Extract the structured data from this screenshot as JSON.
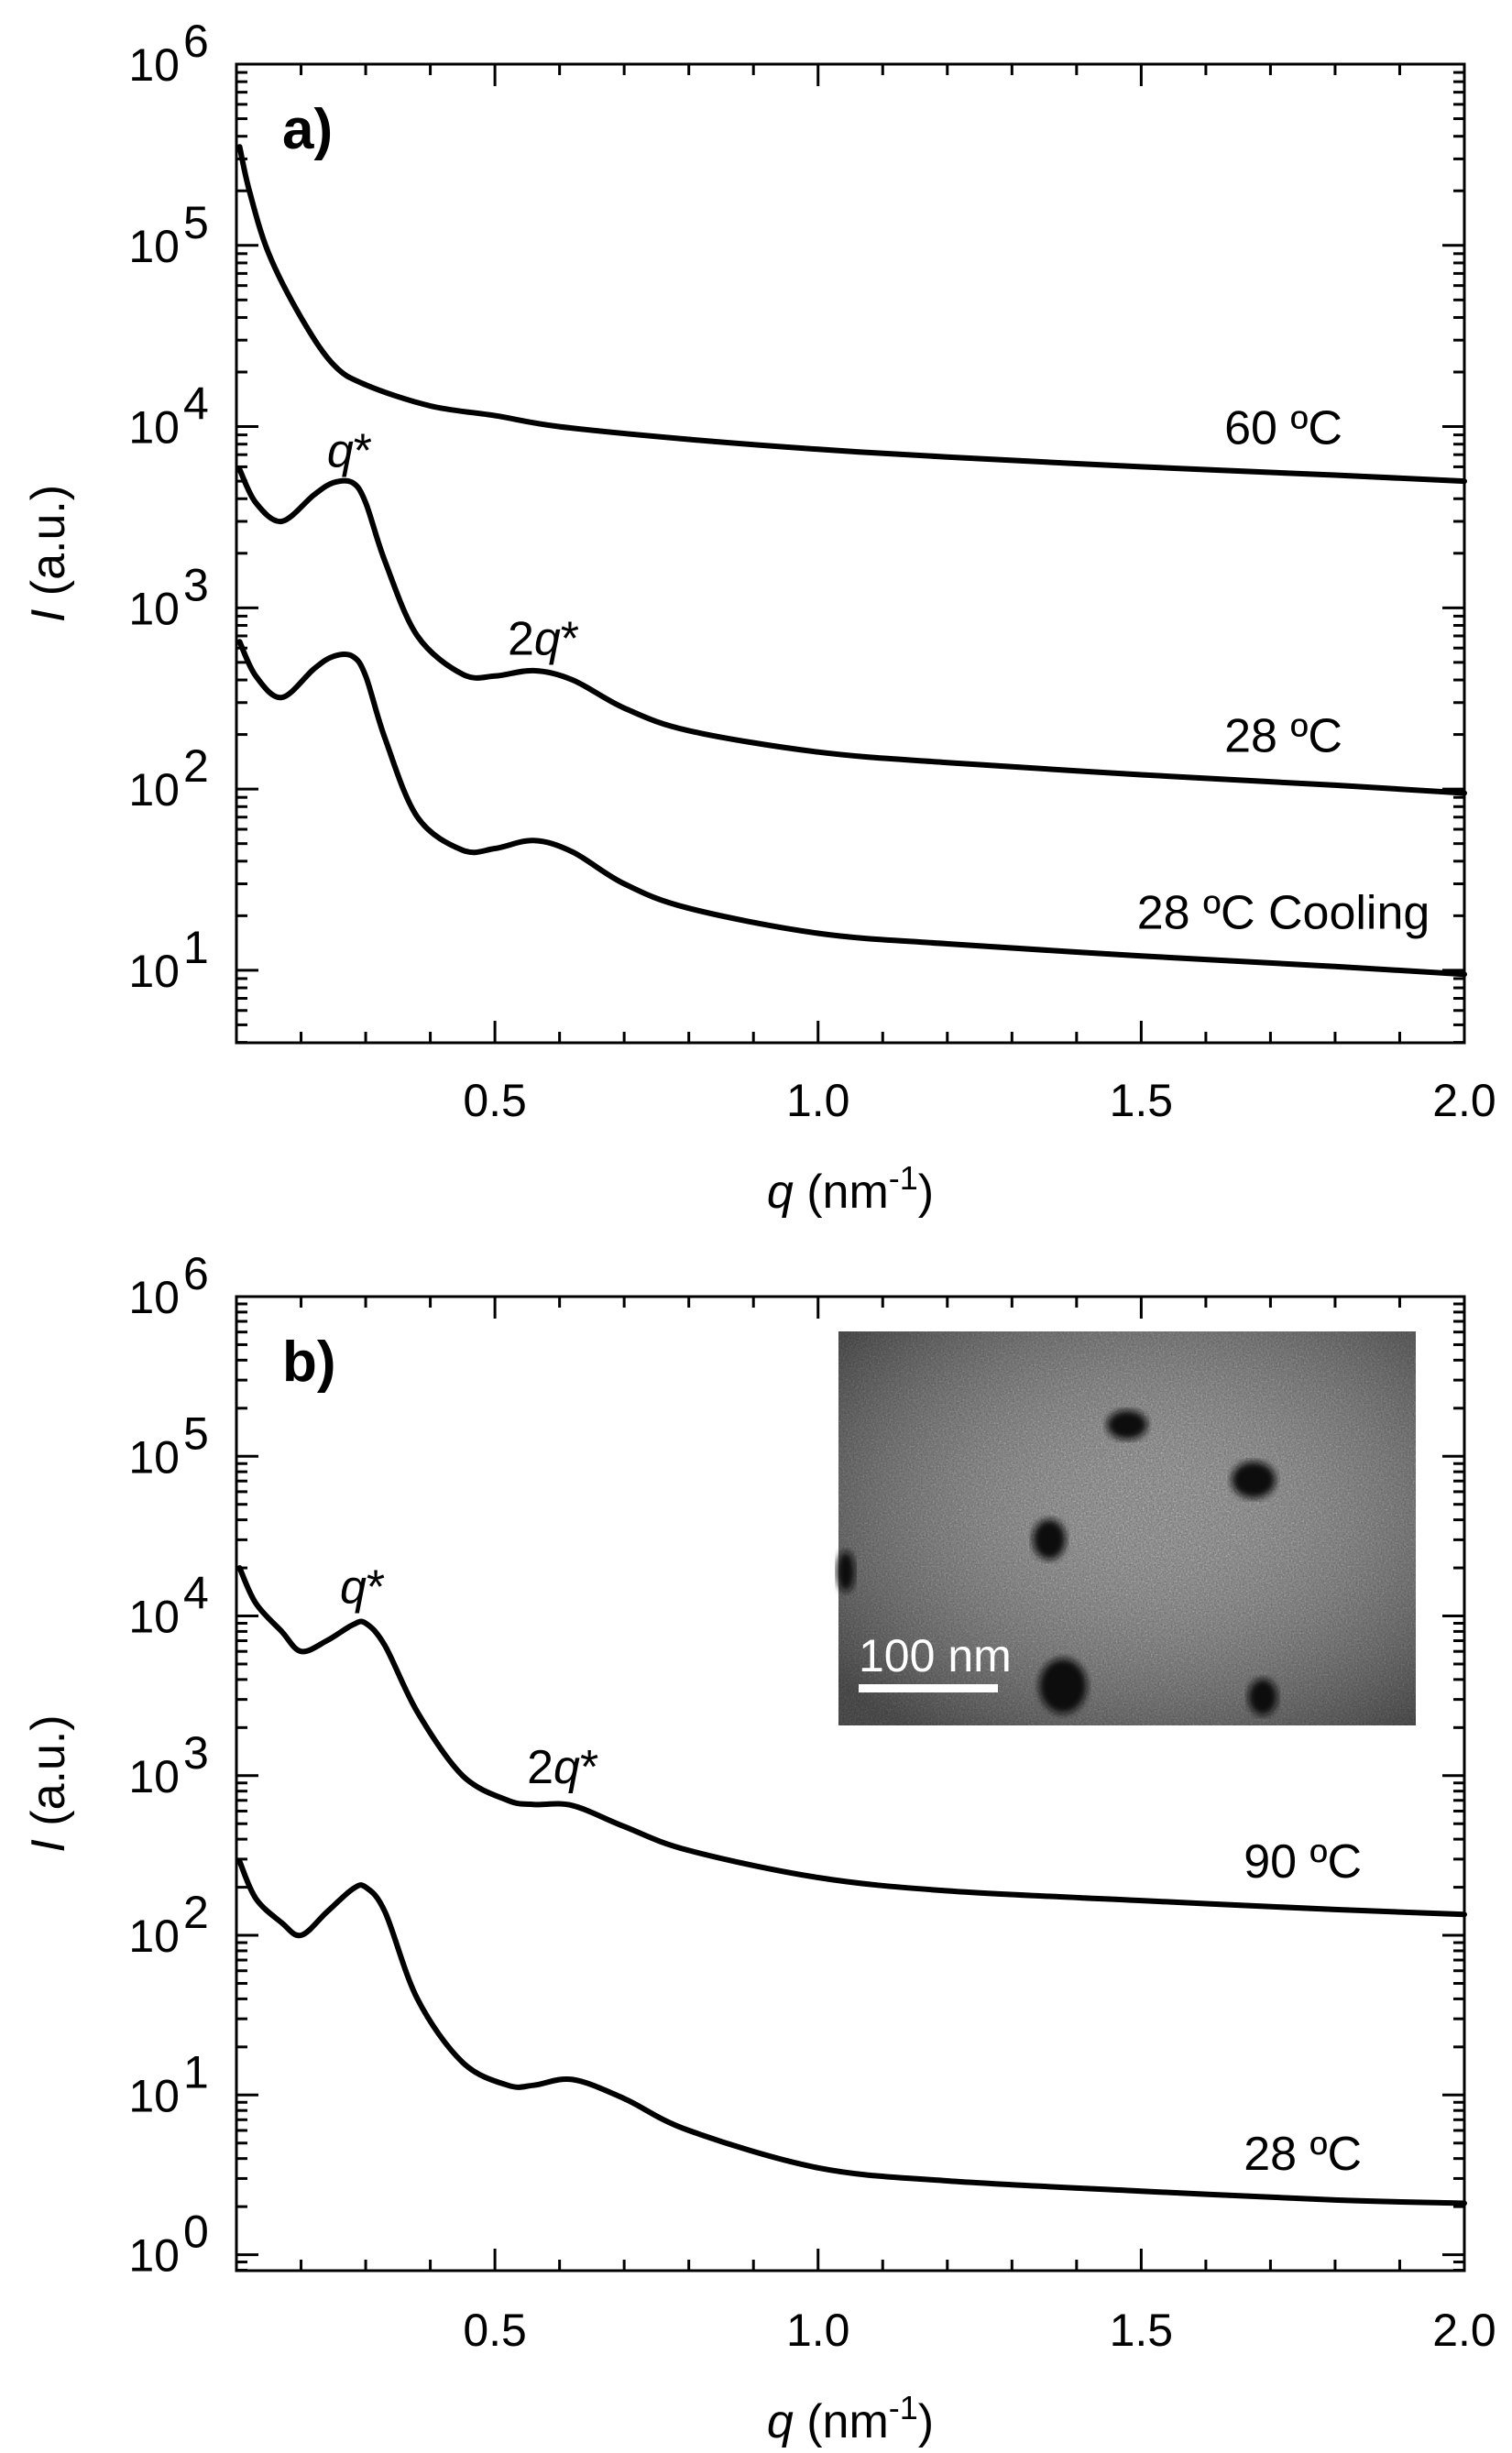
{
  "chart_data": [
    {
      "type": "line",
      "panel_label": "a)",
      "xlabel": "q (nm-1)",
      "xlabel_parts": {
        "var": "q",
        "unit": " (nm",
        "exp": "-1",
        "close": ")"
      },
      "ylabel": "I (a.u.)",
      "ylabel_parts": {
        "var": "I",
        "unit": " (a.u.)"
      },
      "xscale": "linear",
      "yscale": "log",
      "xlim": [
        0.1,
        2.0
      ],
      "ylim_log10": [
        0.6,
        6.0
      ],
      "xticks": [
        0.5,
        1.0,
        1.5,
        2.0
      ],
      "xtick_labels": [
        "0.5",
        "1.0",
        "1.5",
        "2.0"
      ],
      "yticks_exp": [
        1,
        2,
        3,
        4,
        5,
        6
      ],
      "ytick_base": "10",
      "yticks": [
        10,
        100,
        1000,
        10000,
        100000,
        1000000
      ],
      "legend": "none",
      "grid": false,
      "series": [
        {
          "name": "60 ºC",
          "x": [
            0.105,
            0.12,
            0.15,
            0.2,
            0.25,
            0.3,
            0.4,
            0.5,
            0.6,
            0.8,
            1.0,
            1.2,
            1.5,
            1.8,
            2.0
          ],
          "y": [
            350000,
            200000,
            90000,
            40000,
            22000,
            17000,
            13000,
            11500,
            10000,
            8500,
            7500,
            6800,
            6000,
            5400,
            5000
          ]
        },
        {
          "name": "28 ºC",
          "x": [
            0.105,
            0.13,
            0.17,
            0.22,
            0.25,
            0.28,
            0.3,
            0.33,
            0.38,
            0.45,
            0.5,
            0.56,
            0.62,
            0.7,
            0.8,
            1.0,
            1.2,
            1.5,
            1.8,
            2.0
          ],
          "y": [
            5800,
            3800,
            3000,
            4200,
            4900,
            4900,
            3800,
            1800,
            700,
            430,
            420,
            450,
            400,
            280,
            210,
            160,
            140,
            120,
            105,
            95
          ]
        },
        {
          "name": "28 ºC Cooling",
          "x": [
            0.105,
            0.13,
            0.17,
            0.22,
            0.25,
            0.28,
            0.3,
            0.33,
            0.38,
            0.45,
            0.5,
            0.56,
            0.62,
            0.7,
            0.8,
            1.0,
            1.2,
            1.5,
            1.8,
            2.0
          ],
          "y": [
            650,
            420,
            320,
            460,
            540,
            540,
            420,
            190,
            70,
            46,
            47,
            52,
            45,
            30,
            22,
            16,
            14,
            12,
            10.5,
            9.5
          ]
        }
      ],
      "annotations": [
        {
          "text": "q*",
          "x": 0.275,
          "y": 6000
        },
        {
          "text": "2q*",
          "x": 0.575,
          "y": 550
        },
        {
          "text": "60 ºC",
          "x": 1.72,
          "y": 8000
        },
        {
          "text": "28 ºC",
          "x": 1.72,
          "y": 160
        },
        {
          "text": "28 ºC Cooling",
          "x": 1.72,
          "y": 17
        }
      ]
    },
    {
      "type": "line",
      "panel_label": "b)",
      "xlabel": "q (nm-1)",
      "xlabel_parts": {
        "var": "q",
        "unit": " (nm",
        "exp": "-1",
        "close": ")"
      },
      "ylabel": "I (a.u.)",
      "ylabel_parts": {
        "var": "I",
        "unit": " (a.u.)"
      },
      "xscale": "linear",
      "yscale": "log",
      "xlim": [
        0.1,
        2.0
      ],
      "ylim_log10": [
        -0.1,
        6.0
      ],
      "xticks": [
        0.5,
        1.0,
        1.5,
        2.0
      ],
      "xtick_labels": [
        "0.5",
        "1.0",
        "1.5",
        "2.0"
      ],
      "yticks_exp": [
        0,
        1,
        2,
        3,
        4,
        5,
        6
      ],
      "ytick_base": "10",
      "yticks": [
        1,
        10,
        100,
        1000,
        10000,
        100000,
        1000000
      ],
      "legend": "none",
      "grid": false,
      "series": [
        {
          "name": "90 ºC",
          "x": [
            0.105,
            0.13,
            0.17,
            0.2,
            0.24,
            0.28,
            0.3,
            0.33,
            0.38,
            0.45,
            0.52,
            0.56,
            0.62,
            0.7,
            0.8,
            1.0,
            1.2,
            1.5,
            1.8,
            2.0
          ],
          "y": [
            20000,
            12000,
            8000,
            6000,
            7000,
            8800,
            9000,
            6500,
            2500,
            1000,
            700,
            660,
            650,
            480,
            340,
            230,
            190,
            165,
            145,
            135
          ]
        },
        {
          "name": "28 ºC",
          "x": [
            0.105,
            0.13,
            0.17,
            0.2,
            0.24,
            0.28,
            0.3,
            0.33,
            0.38,
            0.45,
            0.52,
            0.56,
            0.62,
            0.7,
            0.8,
            1.0,
            1.2,
            1.5,
            1.8,
            2.0
          ],
          "y": [
            290,
            170,
            120,
            100,
            140,
            195,
            200,
            140,
            40,
            16,
            11.5,
            11.5,
            12.5,
            9.5,
            6,
            3.5,
            2.9,
            2.5,
            2.2,
            2.1
          ]
        }
      ],
      "annotations": [
        {
          "text": "q*",
          "x": 0.295,
          "y": 12000
        },
        {
          "text": "2q*",
          "x": 0.605,
          "y": 900
        },
        {
          "text": "90 ºC",
          "x": 1.75,
          "y": 230
        },
        {
          "text": "28 ºC",
          "x": 1.75,
          "y": 3.4
        }
      ],
      "inset": {
        "type": "micrograph",
        "scale_bar_label": "100 nm"
      }
    }
  ]
}
